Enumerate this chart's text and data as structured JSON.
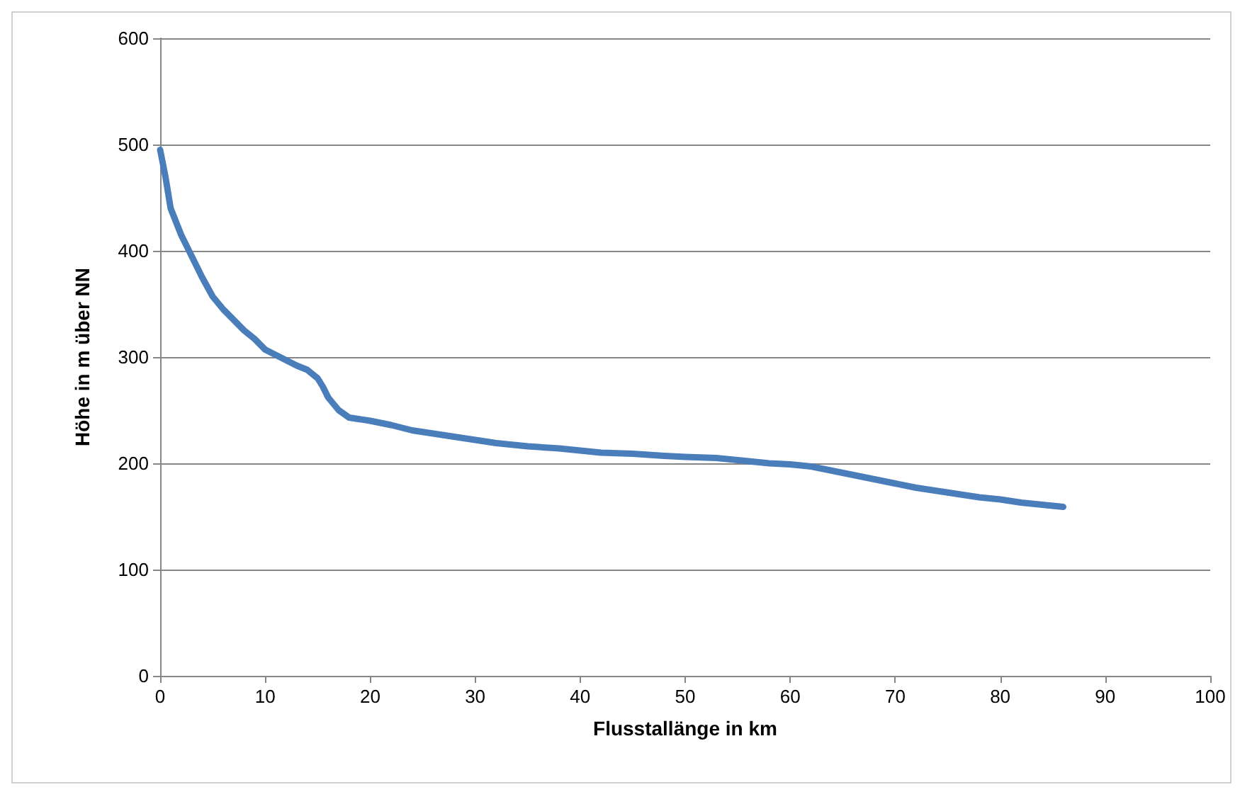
{
  "chart_data": {
    "type": "line",
    "xlabel": "Flusstallänge in km",
    "ylabel": "Höhe in m über NN",
    "series": [
      {
        "color": "#4a7ebb",
        "x": [
          0,
          0.5,
          1,
          2,
          3,
          4,
          5,
          6,
          7,
          8,
          9,
          10,
          11,
          12,
          13,
          14,
          15,
          15.5,
          16,
          17,
          18,
          20,
          22,
          24,
          26,
          28,
          30,
          32,
          35,
          38,
          40,
          42,
          45,
          48,
          50,
          53,
          55,
          58,
          60,
          62,
          64,
          66,
          68,
          70,
          72,
          74,
          76,
          78,
          80,
          82,
          84,
          86
        ],
        "values": [
          495,
          470,
          440,
          415,
          395,
          375,
          357,
          345,
          335,
          325,
          317,
          307,
          302,
          297,
          292,
          288,
          280,
          272,
          262,
          250,
          243,
          240,
          236,
          231,
          228,
          225,
          222,
          219,
          216,
          214,
          212,
          210,
          209,
          207,
          206,
          205,
          203,
          200,
          199,
          197,
          193,
          189,
          185,
          181,
          177,
          174,
          171,
          168,
          166,
          163,
          161,
          159
        ]
      }
    ],
    "xlim": [
      0,
      100
    ],
    "xticks": [
      0,
      10,
      20,
      30,
      40,
      50,
      60,
      70,
      80,
      90,
      100
    ],
    "ylim": [
      0,
      600
    ],
    "yticks": [
      0,
      100,
      200,
      300,
      400,
      500,
      600
    ],
    "grid": "y",
    "marker": "none",
    "line_style": "solid"
  }
}
